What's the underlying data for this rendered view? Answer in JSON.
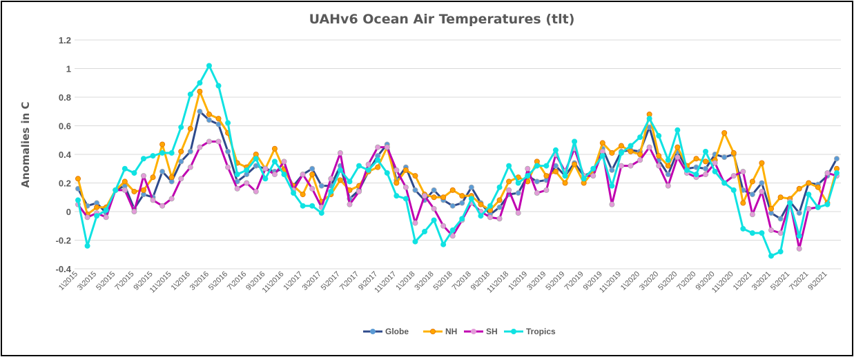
{
  "chart_data": {
    "type": "line",
    "title": "UAHv6 Ocean Air Temperatures (tlt)",
    "xlabel": "",
    "ylabel": "Anomalies in C",
    "ylim": [
      -0.4,
      1.2
    ],
    "yticks": [
      "-0.4",
      "-0.2",
      "0",
      "0.2",
      "0.4",
      "0.6",
      "0.8",
      "1",
      "1.2"
    ],
    "grid": true,
    "legend": "bottom",
    "categories": [
      "1\\2015",
      "2\\2015",
      "3\\2015",
      "4\\2015",
      "5\\2015",
      "6\\2015",
      "7\\2015",
      "8\\2015",
      "9\\2015",
      "10\\2015",
      "11\\2015",
      "12\\2015",
      "1\\2016",
      "2\\2016",
      "3\\2016",
      "4\\2016",
      "5\\2016",
      "6\\2016",
      "7\\2016",
      "8\\2016",
      "9\\2016",
      "10\\2016",
      "11\\2016",
      "12\\2016",
      "1\\2017",
      "2\\2017",
      "3\\2017",
      "4\\2017",
      "5\\2017",
      "6\\2017",
      "7\\2017",
      "8\\2017",
      "9\\2017",
      "10\\2017",
      "11\\2017",
      "12\\2017",
      "1\\2018",
      "2\\2018",
      "3\\2018",
      "4\\2018",
      "5\\2018",
      "6\\2018",
      "7\\2018",
      "8\\2018",
      "9\\2018",
      "10\\2018",
      "11\\2018",
      "12\\2018",
      "1\\2019",
      "2\\2019",
      "3\\2019",
      "4\\2019",
      "5\\2019",
      "6\\2019",
      "7\\2019",
      "8\\2019",
      "9\\2019",
      "10\\2019",
      "11\\2019",
      "12\\2019",
      "1\\2020",
      "2\\2020",
      "3\\2020",
      "4\\2020",
      "5\\2020",
      "6\\2020",
      "7\\2020",
      "8\\2020",
      "9\\2020",
      "10\\2020",
      "11\\2020",
      "12\\2020",
      "1\\2021",
      "2\\2021",
      "3\\2021",
      "4\\2021",
      "5\\2021",
      "6\\2021",
      "7\\2021",
      "8\\2021",
      "9\\2021",
      "10\\2021"
    ],
    "series": [
      {
        "name": "Globe",
        "color": "#2E4A8C",
        "marker": "#5B9BD5",
        "values": [
          0.16,
          0.04,
          0.06,
          -0.01,
          0.15,
          0.18,
          0.02,
          0.12,
          0.1,
          0.28,
          0.21,
          0.35,
          0.42,
          0.7,
          0.64,
          0.61,
          0.42,
          0.21,
          0.26,
          0.32,
          0.3,
          0.28,
          0.3,
          0.18,
          0.26,
          0.3,
          0.18,
          0.18,
          0.32,
          0.09,
          0.15,
          0.28,
          0.39,
          0.47,
          0.22,
          0.31,
          0.15,
          0.08,
          0.15,
          0.08,
          0.04,
          0.06,
          0.17,
          0.06,
          -0.02,
          0.03,
          0.12,
          0.13,
          0.25,
          0.21,
          0.22,
          0.32,
          0.25,
          0.34,
          0.25,
          0.28,
          0.44,
          0.29,
          0.42,
          0.43,
          0.42,
          0.59,
          0.36,
          0.26,
          0.42,
          0.3,
          0.31,
          0.3,
          0.4,
          0.38,
          0.4,
          0.15,
          0.12,
          0.2,
          -0.01,
          -0.05,
          0.07,
          -0.01,
          0.2,
          0.19,
          0.25,
          0.37
        ]
      },
      {
        "name": "NH",
        "color": "#FFB000",
        "marker": "#FFA500",
        "values": [
          0.23,
          -0.02,
          0.03,
          0.03,
          0.15,
          0.21,
          0.14,
          0.15,
          0.24,
          0.47,
          0.24,
          0.42,
          0.58,
          0.84,
          0.68,
          0.65,
          0.55,
          0.34,
          0.31,
          0.4,
          0.3,
          0.44,
          0.29,
          0.18,
          0.12,
          0.26,
          0.07,
          0.12,
          0.22,
          0.15,
          0.18,
          0.28,
          0.31,
          0.45,
          0.2,
          0.29,
          0.25,
          0.12,
          0.1,
          0.1,
          0.15,
          0.11,
          0.11,
          0.05,
          0.01,
          0.08,
          0.21,
          0.24,
          0.21,
          0.35,
          0.25,
          0.28,
          0.2,
          0.33,
          0.2,
          0.28,
          0.48,
          0.41,
          0.46,
          0.42,
          0.4,
          0.68,
          0.39,
          0.32,
          0.45,
          0.32,
          0.37,
          0.35,
          0.36,
          0.55,
          0.41,
          0.06,
          0.21,
          0.34,
          0.02,
          0.1,
          0.09,
          0.16,
          0.2,
          0.17,
          0.06,
          0.3
        ]
      },
      {
        "name": "SH",
        "color": "#C000B0",
        "marker": "#E39BD9",
        "values": [
          0.05,
          -0.04,
          -0.01,
          -0.04,
          0.15,
          0.15,
          0.0,
          0.25,
          0.08,
          0.04,
          0.09,
          0.23,
          0.31,
          0.45,
          0.49,
          0.49,
          0.31,
          0.16,
          0.2,
          0.14,
          0.3,
          0.26,
          0.35,
          0.15,
          0.26,
          0.16,
          0.03,
          0.23,
          0.41,
          0.05,
          0.14,
          0.33,
          0.45,
          0.45,
          0.29,
          0.17,
          -0.08,
          0.11,
          0.02,
          -0.1,
          -0.17,
          -0.06,
          0.06,
          0.0,
          -0.04,
          -0.05,
          0.15,
          -0.01,
          0.3,
          0.13,
          0.15,
          0.4,
          0.28,
          0.44,
          0.25,
          0.25,
          0.42,
          0.05,
          0.32,
          0.32,
          0.36,
          0.45,
          0.32,
          0.18,
          0.38,
          0.27,
          0.24,
          0.26,
          0.34,
          0.2,
          0.25,
          0.28,
          -0.02,
          0.14,
          -0.13,
          -0.15,
          0.07,
          -0.26,
          0.02,
          0.03,
          0.27,
          0.25
        ]
      },
      {
        "name": "Tropics",
        "color": "#10E2E2",
        "marker": "#10E2E2",
        "values": [
          0.08,
          -0.24,
          -0.03,
          0.01,
          0.15,
          0.3,
          0.27,
          0.37,
          0.39,
          0.41,
          0.41,
          0.59,
          0.82,
          0.9,
          1.02,
          0.88,
          0.62,
          0.26,
          0.29,
          0.37,
          0.23,
          0.35,
          0.26,
          0.13,
          0.04,
          0.04,
          -0.01,
          0.14,
          0.29,
          0.21,
          0.32,
          0.29,
          0.36,
          0.27,
          0.11,
          0.09,
          -0.21,
          -0.14,
          -0.06,
          -0.23,
          -0.13,
          -0.05,
          0.09,
          -0.03,
          0.04,
          0.17,
          0.32,
          0.2,
          0.25,
          0.32,
          0.32,
          0.43,
          0.25,
          0.49,
          0.23,
          0.3,
          0.39,
          0.18,
          0.41,
          0.46,
          0.52,
          0.65,
          0.53,
          0.36,
          0.57,
          0.29,
          0.26,
          0.42,
          0.28,
          0.2,
          0.15,
          -0.12,
          -0.15,
          -0.15,
          -0.31,
          -0.28,
          0.06,
          -0.17,
          0.12,
          0.03,
          0.05,
          0.27
        ]
      }
    ]
  }
}
